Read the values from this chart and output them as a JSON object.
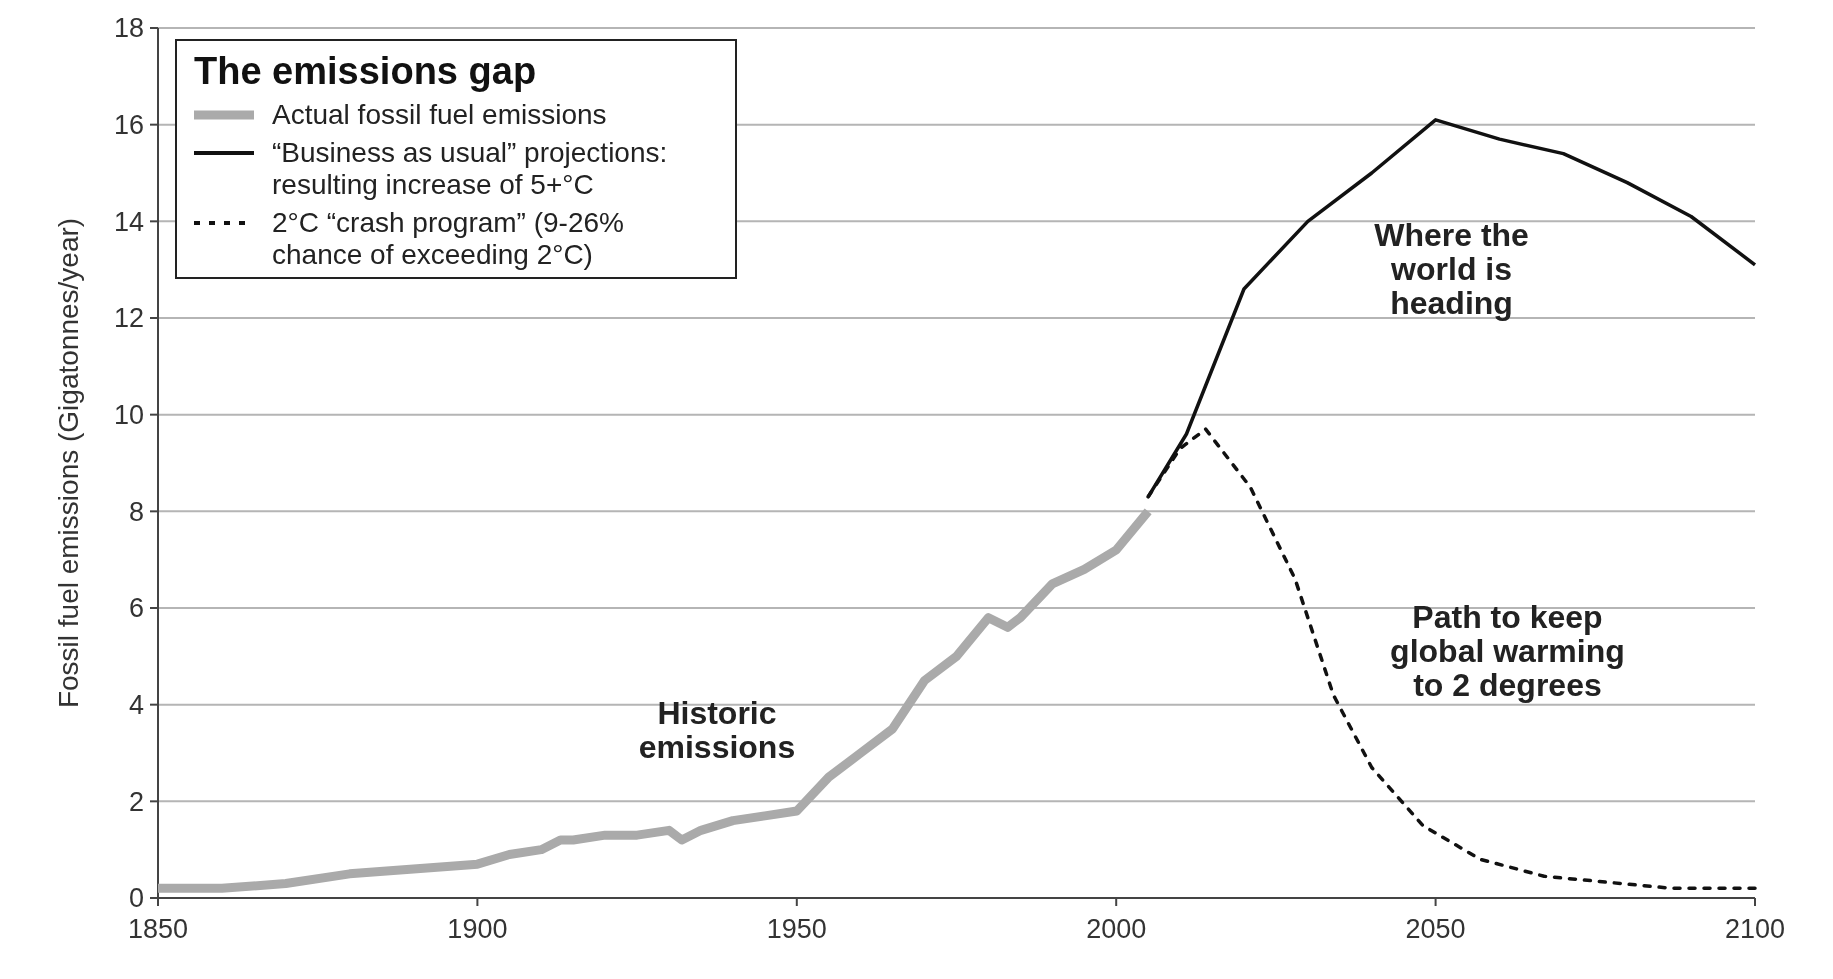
{
  "chart_data": {
    "type": "line",
    "ylabel": "Fossil fuel emissions (Gigatonnes/year)",
    "legend_title": "The emissions gap",
    "xlim": [
      1850,
      2100
    ],
    "xticks": [
      1850,
      1900,
      1950,
      2000,
      2050,
      2100
    ],
    "ylim": [
      0,
      18
    ],
    "yticks": [
      0,
      2,
      4,
      6,
      8,
      10,
      12,
      14,
      16,
      18
    ],
    "grid": "y",
    "legend": "top left",
    "marker": "none",
    "series": [
      {
        "name": "Actual fossil fuel emissions",
        "color": "#aaaaaa",
        "line_style": "solid",
        "x": [
          1850,
          1860,
          1870,
          1880,
          1890,
          1900,
          1905,
          1910,
          1913,
          1915,
          1920,
          1925,
          1930,
          1932,
          1935,
          1940,
          1945,
          1950,
          1955,
          1960,
          1965,
          1970,
          1975,
          1980,
          1983,
          1985,
          1990,
          1995,
          2000,
          2005
        ],
        "values": [
          0.2,
          0.2,
          0.3,
          0.5,
          0.6,
          0.7,
          0.9,
          1.0,
          1.2,
          1.2,
          1.3,
          1.3,
          1.4,
          1.2,
          1.4,
          1.6,
          1.7,
          1.8,
          2.5,
          3.0,
          3.5,
          4.5,
          5.0,
          5.8,
          5.6,
          5.8,
          6.5,
          6.8,
          7.2,
          8.0
        ]
      },
      {
        "name": "“Business as usual” projections: resulting increase of 5+°C",
        "color": "#111111",
        "line_style": "solid",
        "x": [
          2005,
          2011,
          2020,
          2030,
          2040,
          2050,
          2060,
          2070,
          2080,
          2090,
          2100
        ],
        "values": [
          8.3,
          9.6,
          12.6,
          14.0,
          15.0,
          16.1,
          15.7,
          15.4,
          14.8,
          14.1,
          13.1
        ]
      },
      {
        "name": "2°C “crash program” (9-26% chance of exceeding 2°C)",
        "color": "#111111",
        "line_style": "dotted",
        "x": [
          2005,
          2010,
          2014,
          2021,
          2028,
          2034,
          2040,
          2048,
          2057,
          2067,
          2087,
          2100
        ],
        "values": [
          8.3,
          9.3,
          9.7,
          8.5,
          6.6,
          4.2,
          2.7,
          1.5,
          0.8,
          0.45,
          0.2,
          0.2
        ]
      }
    ],
    "annotations": [
      "Where the\nworld is\nheading",
      "Path to keep\nglobal warming\nto 2 degrees",
      "Historic\nemissions"
    ]
  }
}
